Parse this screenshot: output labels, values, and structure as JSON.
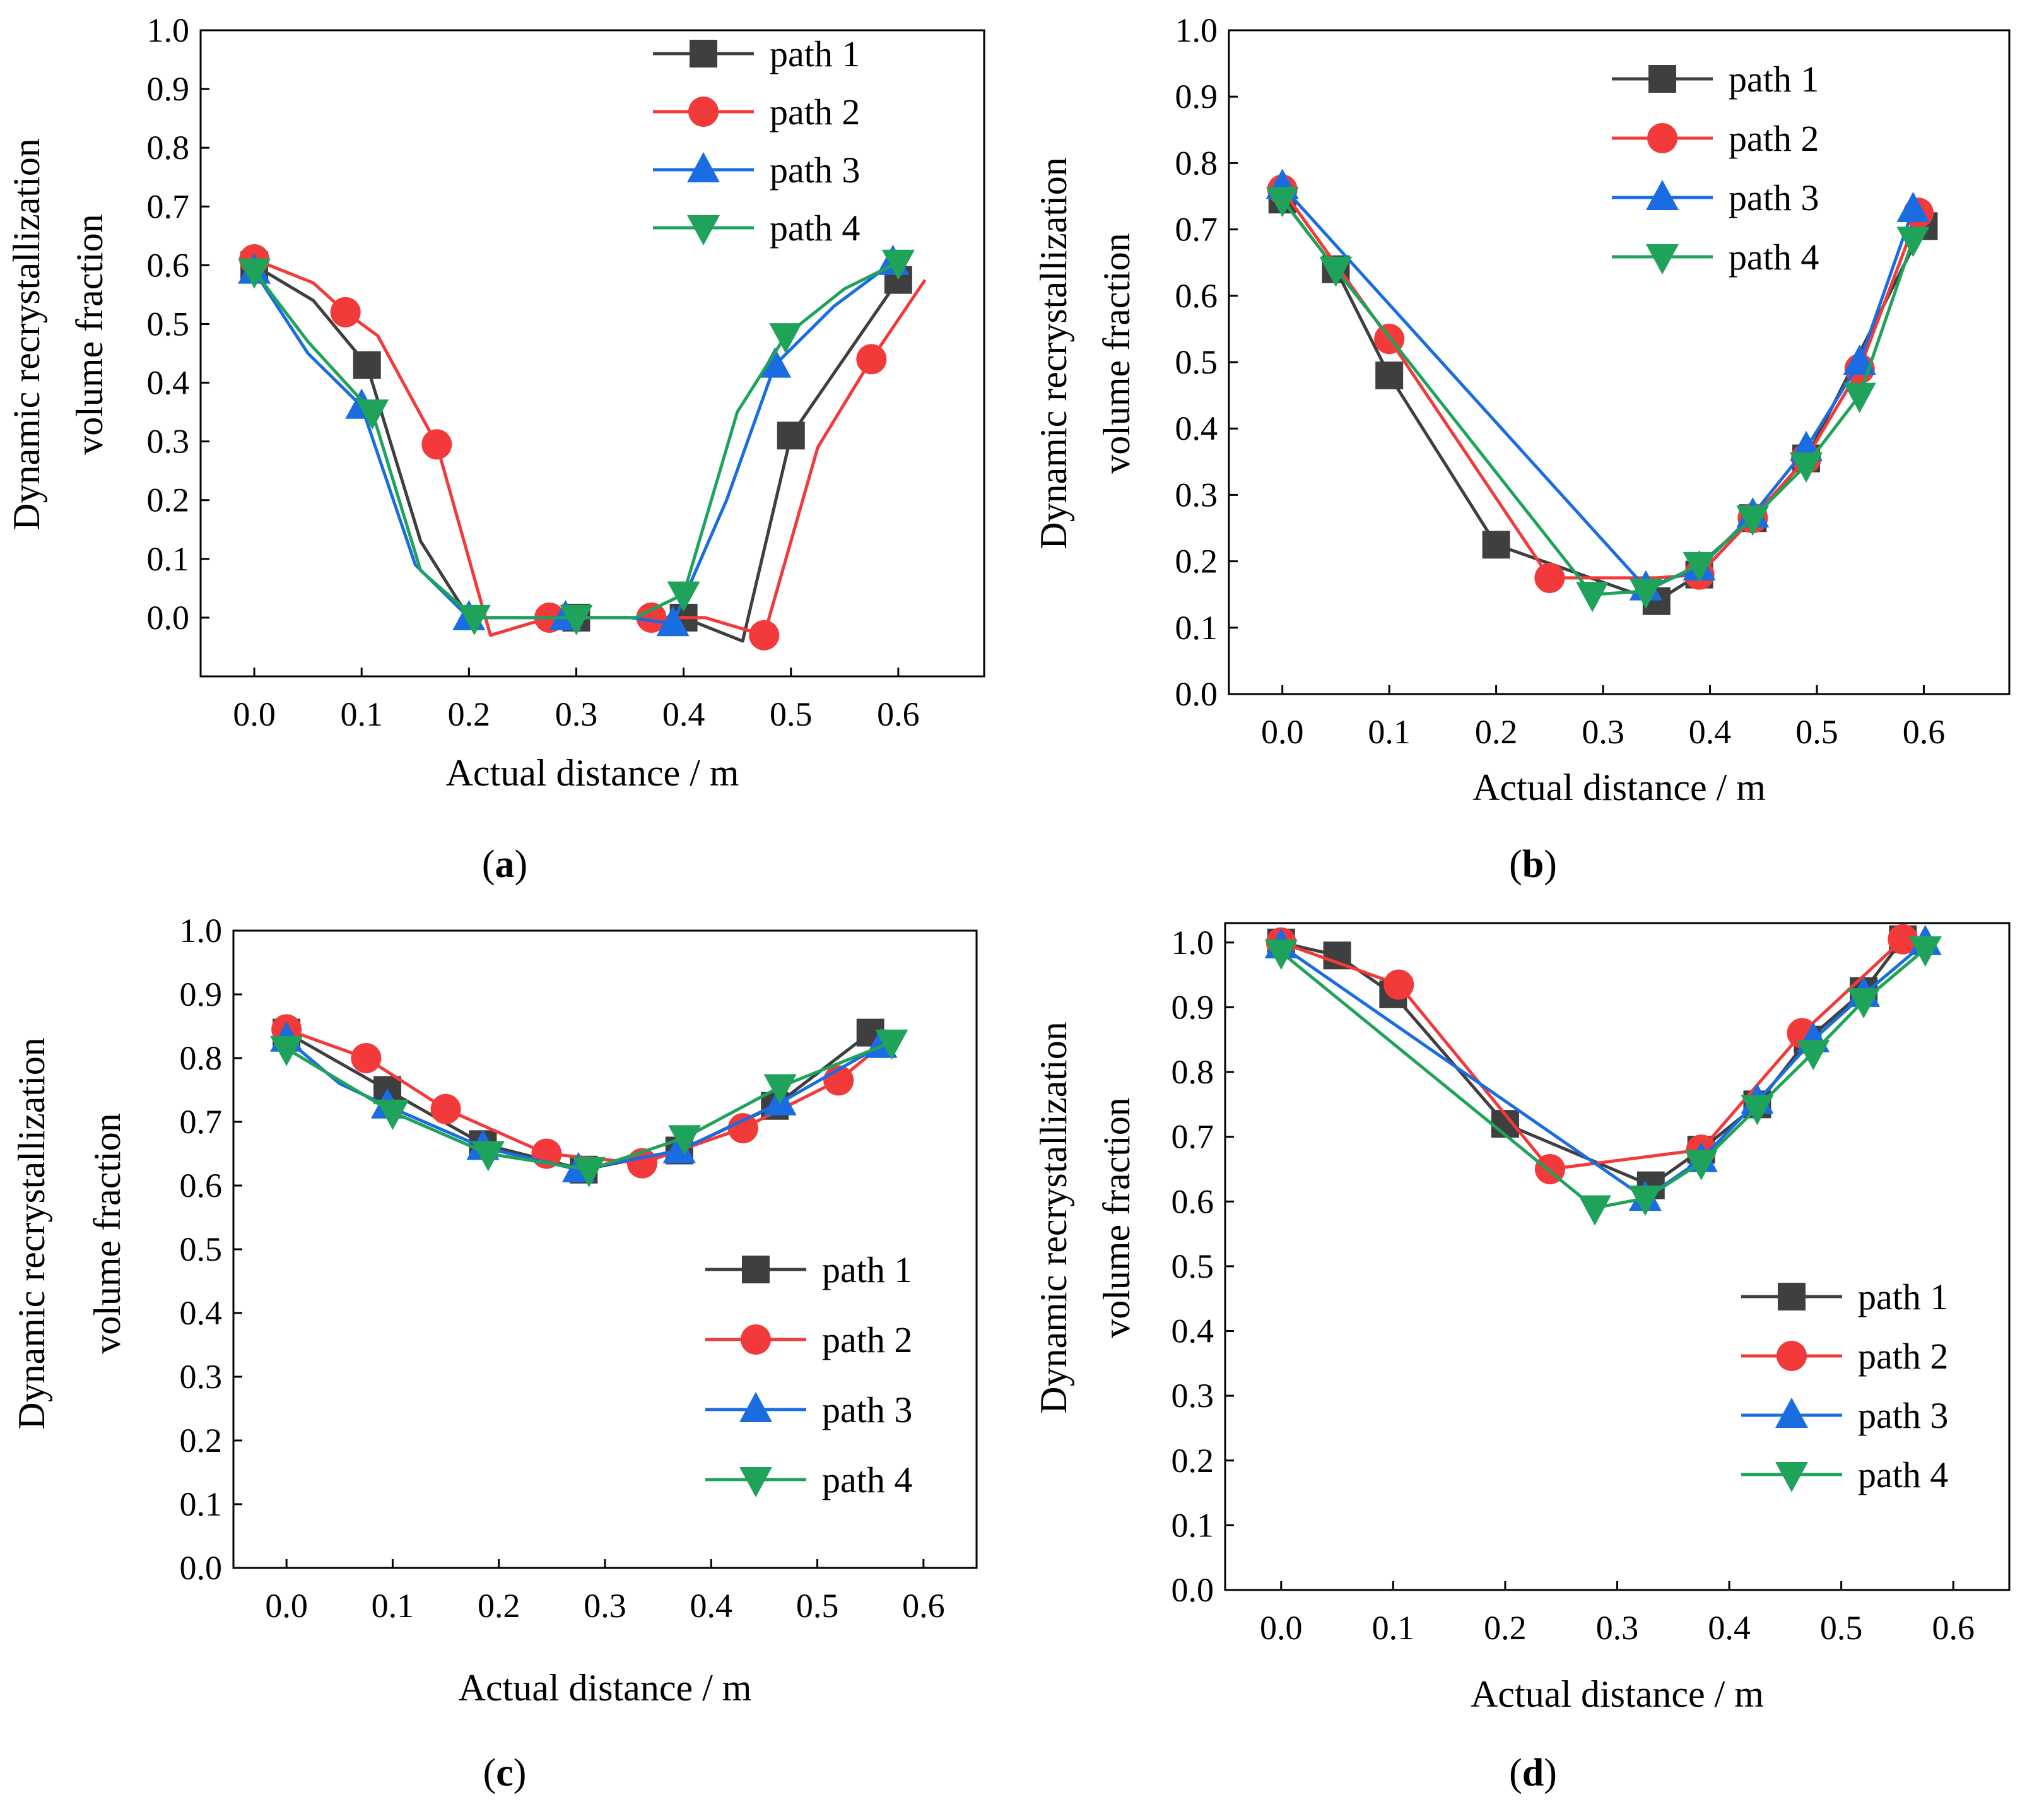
{
  "figure": {
    "captions": [
      "(a)",
      "(b)",
      "(c)",
      "(d)"
    ]
  },
  "colors": {
    "path_1": "#3f3f3f",
    "path_2": "#f23a3a",
    "path_3": "#1a6de0",
    "path_4": "#1fa35a"
  },
  "chart_data": [
    {
      "id": "a",
      "type": "line",
      "caption": "(a)",
      "xlabel": "Actual distance / m",
      "ylabel_lines": [
        "Dynamic recrystallization",
        "volume fraction"
      ],
      "xlim": [
        -0.05,
        0.68
      ],
      "ylim": [
        -0.1,
        1.0
      ],
      "xticks": [
        "0.0",
        "0.1",
        "0.2",
        "0.3",
        "0.4",
        "0.5",
        "0.6"
      ],
      "yticks": [
        "0.0",
        "0.1",
        "0.2",
        "0.3",
        "0.4",
        "0.5",
        "0.6",
        "0.7",
        "0.8",
        "0.9",
        "1.0"
      ],
      "legend_position": "top-right",
      "series": [
        {
          "name": "path 1",
          "marker": "square",
          "x": [
            0.0,
            0.055,
            0.105,
            0.155,
            0.2,
            0.3,
            0.35,
            0.4,
            0.455,
            0.5,
            0.6
          ],
          "y": [
            0.6,
            0.54,
            0.43,
            0.13,
            0.0,
            0.0,
            0.0,
            0.0,
            -0.04,
            0.31,
            0.575
          ],
          "markers_at": [
            0,
            2,
            5,
            7,
            9,
            10
          ]
        },
        {
          "name": "path 2",
          "marker": "circle",
          "x": [
            0.0,
            0.055,
            0.085,
            0.115,
            0.17,
            0.22,
            0.275,
            0.37,
            0.42,
            0.475,
            0.525,
            0.575,
            0.625
          ],
          "y": [
            0.61,
            0.57,
            0.52,
            0.48,
            0.295,
            -0.03,
            0.0,
            0.0,
            0.0,
            -0.03,
            0.29,
            0.44,
            0.575
          ],
          "markers_at": [
            0,
            2,
            4,
            6,
            7,
            9,
            11
          ]
        },
        {
          "name": "path 3",
          "marker": "triangle-up",
          "x": [
            0.0,
            0.05,
            0.1,
            0.15,
            0.2,
            0.25,
            0.29,
            0.35,
            0.39,
            0.44,
            0.485,
            0.54,
            0.595
          ],
          "y": [
            0.59,
            0.45,
            0.36,
            0.09,
            0.0,
            0.0,
            0.0,
            0.0,
            -0.01,
            0.2,
            0.43,
            0.53,
            0.605
          ],
          "markers_at": [
            0,
            2,
            4,
            6,
            8,
            10,
            12
          ]
        },
        {
          "name": "path 4",
          "marker": "triangle-down",
          "x": [
            0.0,
            0.05,
            0.11,
            0.155,
            0.205,
            0.25,
            0.3,
            0.355,
            0.4,
            0.45,
            0.495,
            0.55,
            0.6
          ],
          "y": [
            0.59,
            0.47,
            0.35,
            0.08,
            0.0,
            0.0,
            0.0,
            0.0,
            0.04,
            0.35,
            0.48,
            0.56,
            0.605
          ],
          "markers_at": [
            0,
            2,
            4,
            6,
            8,
            10,
            12
          ]
        }
      ]
    },
    {
      "id": "b",
      "type": "line",
      "caption": "(b)",
      "xlabel": "Actual distance / m",
      "ylabel_lines": [
        "Dynamic recrystallization",
        "volume fraction"
      ],
      "xlim": [
        -0.05,
        0.68
      ],
      "ylim": [
        0.0,
        1.0
      ],
      "xticks": [
        "0.0",
        "0.1",
        "0.2",
        "0.3",
        "0.4",
        "0.5",
        "0.6"
      ],
      "yticks": [
        "0.0",
        "0.1",
        "0.2",
        "0.3",
        "0.4",
        "0.5",
        "0.6",
        "0.7",
        "0.8",
        "0.9",
        "1.0"
      ],
      "legend_position": "top-right",
      "series": [
        {
          "name": "path 1",
          "marker": "square",
          "x": [
            0.0,
            0.05,
            0.1,
            0.2,
            0.35,
            0.39,
            0.44,
            0.49,
            0.6
          ],
          "y": [
            0.745,
            0.64,
            0.48,
            0.225,
            0.14,
            0.18,
            0.265,
            0.355,
            0.705
          ],
          "markers_at": [
            0,
            1,
            2,
            3,
            4,
            5,
            6,
            7,
            8
          ]
        },
        {
          "name": "path 2",
          "marker": "circle",
          "x": [
            0.0,
            0.1,
            0.25,
            0.3,
            0.35,
            0.39,
            0.44,
            0.49,
            0.54,
            0.595
          ],
          "y": [
            0.76,
            0.535,
            0.175,
            0.175,
            0.175,
            0.18,
            0.265,
            0.355,
            0.49,
            0.725
          ],
          "markers_at": [
            0,
            1,
            2,
            5,
            6,
            7,
            8,
            9
          ]
        },
        {
          "name": "path 3",
          "marker": "triangle-up",
          "x": [
            0.0,
            0.34,
            0.39,
            0.44,
            0.49,
            0.54,
            0.59
          ],
          "y": [
            0.765,
            0.16,
            0.19,
            0.27,
            0.37,
            0.5,
            0.73
          ],
          "markers_at": [
            0,
            1,
            2,
            3,
            4,
            5,
            6
          ]
        },
        {
          "name": "path 4",
          "marker": "triangle-down",
          "x": [
            0.0,
            0.05,
            0.29,
            0.34,
            0.39,
            0.44,
            0.49,
            0.54,
            0.59
          ],
          "y": [
            0.745,
            0.64,
            0.15,
            0.155,
            0.195,
            0.265,
            0.345,
            0.45,
            0.685
          ],
          "markers_at": [
            0,
            1,
            2,
            3,
            4,
            5,
            6,
            7,
            8
          ]
        }
      ]
    },
    {
      "id": "c",
      "type": "line",
      "caption": "(c)",
      "xlabel": "Actual distance / m",
      "ylabel_lines": [
        "Dynamic recrystallization",
        "volume fraction"
      ],
      "xlim": [
        -0.05,
        0.65
      ],
      "ylim": [
        0.0,
        1.0
      ],
      "xticks": [
        "0.0",
        "0.1",
        "0.2",
        "0.3",
        "0.4",
        "0.5",
        "0.6"
      ],
      "yticks": [
        "0.0",
        "0.1",
        "0.2",
        "0.3",
        "0.4",
        "0.5",
        "0.6",
        "0.7",
        "0.8",
        "0.9",
        "1.0"
      ],
      "legend_position": "lower-right",
      "series": [
        {
          "name": "path 1",
          "marker": "square",
          "x": [
            0.0,
            0.095,
            0.185,
            0.28,
            0.37,
            0.46,
            0.55
          ],
          "y": [
            0.84,
            0.75,
            0.665,
            0.625,
            0.655,
            0.725,
            0.84
          ],
          "markers_at": [
            0,
            1,
            2,
            3,
            4,
            5,
            6
          ]
        },
        {
          "name": "path 2",
          "marker": "circle",
          "x": [
            0.0,
            0.075,
            0.15,
            0.245,
            0.335,
            0.43,
            0.52,
            0.56
          ],
          "y": [
            0.845,
            0.8,
            0.72,
            0.65,
            0.635,
            0.69,
            0.765,
            0.82
          ],
          "markers_at": [
            0,
            1,
            2,
            3,
            4,
            5,
            6
          ]
        },
        {
          "name": "path 3",
          "marker": "triangle-up",
          "x": [
            0.0,
            0.05,
            0.095,
            0.185,
            0.275,
            0.37,
            0.465,
            0.56
          ],
          "y": [
            0.83,
            0.76,
            0.725,
            0.66,
            0.625,
            0.655,
            0.73,
            0.82
          ],
          "markers_at": [
            0,
            2,
            3,
            4,
            5,
            6,
            7
          ]
        },
        {
          "name": "path 4",
          "marker": "triangle-down",
          "x": [
            0.0,
            0.1,
            0.19,
            0.285,
            0.375,
            0.465,
            0.57
          ],
          "y": [
            0.815,
            0.715,
            0.65,
            0.625,
            0.675,
            0.755,
            0.825
          ],
          "markers_at": [
            0,
            1,
            2,
            3,
            4,
            5,
            6
          ]
        }
      ]
    },
    {
      "id": "d",
      "type": "line",
      "caption": "(d)",
      "xlabel": "Actual distance / m",
      "ylabel_lines": [
        "Dynamic recrystallization",
        "volume fraction"
      ],
      "xlim": [
        -0.05,
        0.65
      ],
      "ylim": [
        0.0,
        1.03
      ],
      "xticks": [
        "0.0",
        "0.1",
        "0.2",
        "0.3",
        "0.4",
        "0.5",
        "0.6"
      ],
      "yticks": [
        "0.0",
        "0.1",
        "0.2",
        "0.3",
        "0.4",
        "0.5",
        "0.6",
        "0.7",
        "0.8",
        "0.9",
        "1.0"
      ],
      "legend_position": "lower-right",
      "series": [
        {
          "name": "path 1",
          "marker": "square",
          "x": [
            0.0,
            0.05,
            0.1,
            0.2,
            0.33,
            0.375,
            0.425,
            0.47,
            0.52,
            0.555
          ],
          "y": [
            1.0,
            0.98,
            0.92,
            0.72,
            0.625,
            0.68,
            0.75,
            0.85,
            0.925,
            1.005
          ],
          "markers_at": [
            0,
            1,
            2,
            3,
            4,
            5,
            6,
            7,
            8,
            9
          ]
        },
        {
          "name": "path 2",
          "marker": "circle",
          "x": [
            0.0,
            0.105,
            0.24,
            0.375,
            0.465,
            0.555
          ],
          "y": [
            1.0,
            0.935,
            0.65,
            0.68,
            0.86,
            1.005
          ],
          "markers_at": [
            0,
            1,
            2,
            3,
            4,
            5
          ]
        },
        {
          "name": "path 3",
          "marker": "triangle-up",
          "x": [
            0.0,
            0.325,
            0.375,
            0.425,
            0.475,
            0.52,
            0.575
          ],
          "y": [
            0.995,
            0.605,
            0.665,
            0.755,
            0.85,
            0.92,
            1.0
          ],
          "markers_at": [
            0,
            1,
            2,
            3,
            4,
            5,
            6
          ]
        },
        {
          "name": "path 4",
          "marker": "triangle-down",
          "x": [
            0.0,
            0.28,
            0.325,
            0.375,
            0.425,
            0.475,
            0.52,
            0.575
          ],
          "y": [
            0.985,
            0.59,
            0.605,
            0.66,
            0.745,
            0.83,
            0.91,
            0.99
          ],
          "markers_at": [
            0,
            1,
            2,
            3,
            4,
            5,
            6,
            7
          ]
        }
      ]
    }
  ]
}
